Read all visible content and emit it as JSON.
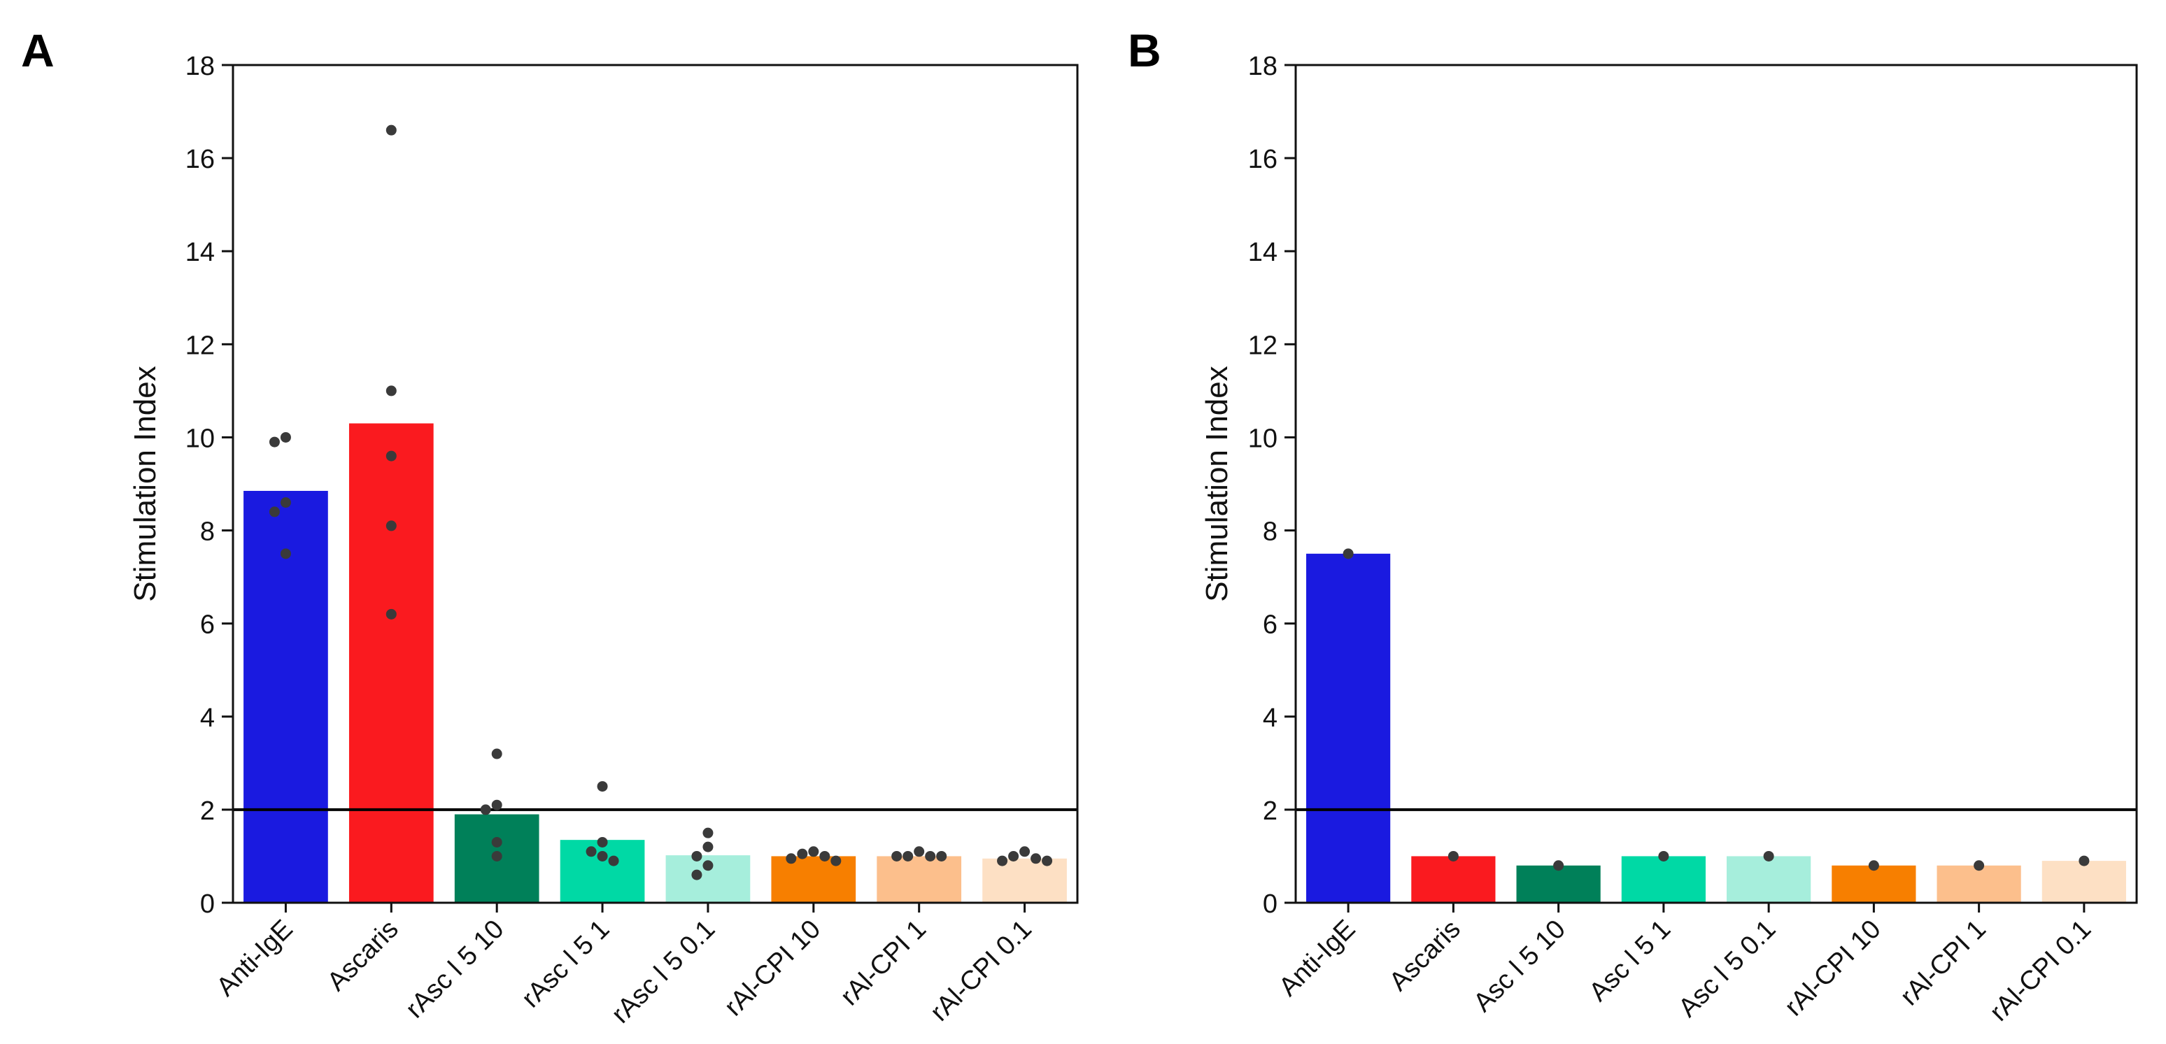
{
  "figure": {
    "background": "#ffffff"
  },
  "chart_data": [
    {
      "panel_label": "A",
      "type": "bar",
      "title": "",
      "xlabel": "",
      "ylabel": "Stimulation Index",
      "ylim": [
        0,
        18
      ],
      "yticks": [
        0,
        2,
        4,
        6,
        8,
        10,
        12,
        14,
        16,
        18
      ],
      "grid": false,
      "threshold": 2,
      "categories": [
        "Anti-IgE",
        "Ascaris",
        "rAsc l 5 10",
        "rAsc l 5 1",
        "rAsc l 5 0.1",
        "rAl-CPI 10",
        "rAl-CPI 1",
        "rAl-CPI 0.1"
      ],
      "values": [
        8.85,
        10.3,
        1.9,
        1.35,
        1.02,
        1.0,
        1.0,
        0.95
      ],
      "colors": [
        "#1a1ae0",
        "#fa1a1f",
        "#008059",
        "#00d9a5",
        "#a6eedc",
        "#f77f00",
        "#fcbf8c",
        "#fde0c4"
      ],
      "points": [
        [
          10.0,
          9.9,
          8.6,
          8.4,
          7.5
        ],
        [
          16.6,
          11.0,
          9.6,
          8.1,
          6.2
        ],
        [
          3.2,
          2.1,
          2.0,
          1.3,
          1.0
        ],
        [
          2.5,
          1.3,
          1.1,
          1.0,
          0.9
        ],
        [
          1.5,
          1.2,
          1.0,
          0.8,
          0.6
        ],
        [
          1.1,
          1.05,
          1.0,
          0.95,
          0.9
        ],
        [
          1.1,
          1.0,
          1.0,
          1.0,
          1.0
        ],
        [
          1.1,
          1.0,
          0.95,
          0.9,
          0.9
        ]
      ]
    },
    {
      "panel_label": "B",
      "type": "bar",
      "title": "",
      "xlabel": "",
      "ylabel": "Stimulation Index",
      "ylim": [
        0,
        18
      ],
      "yticks": [
        0,
        2,
        4,
        6,
        8,
        10,
        12,
        14,
        16,
        18
      ],
      "grid": false,
      "threshold": 2,
      "categories": [
        "Anti-IgE",
        "Ascaris",
        "Asc l 5 10",
        "Asc l 5 1",
        "Asc l 5 0.1",
        "rAl-CPI 10",
        "rAl-CPI 1",
        "rAl-CPI 0.1"
      ],
      "values": [
        7.5,
        1.0,
        0.8,
        1.0,
        1.0,
        0.8,
        0.8,
        0.9
      ],
      "colors": [
        "#1a1ae0",
        "#fa1a1f",
        "#008059",
        "#00d9a5",
        "#a6eedc",
        "#f77f00",
        "#fcbf8c",
        "#fde0c4"
      ],
      "points": [
        [
          7.5
        ],
        [
          1.0
        ],
        [
          0.8
        ],
        [
          1.0
        ],
        [
          1.0
        ],
        [
          0.8
        ],
        [
          0.8
        ],
        [
          0.9
        ]
      ]
    }
  ]
}
